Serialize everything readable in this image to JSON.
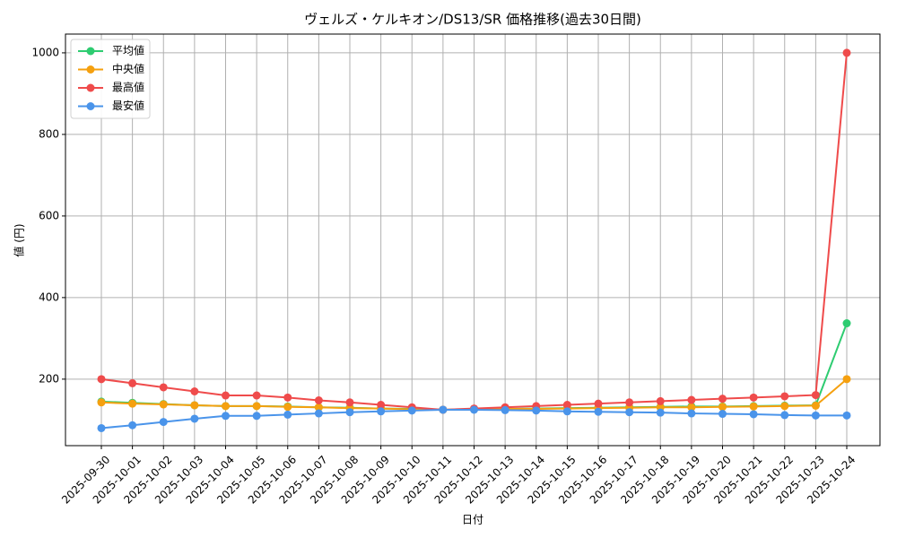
{
  "chart_data": {
    "type": "line",
    "title": "ヴェルズ・ケルキオン/DS13/SR 価格推移(過去30日間)",
    "x_label": "日付",
    "y_label": "値 (円)",
    "categories": [
      "2025-09-30",
      "2025-10-01",
      "2025-10-02",
      "2025-10-03",
      "2025-10-04",
      "2025-10-05",
      "2025-10-06",
      "2025-10-07",
      "2025-10-08",
      "2025-10-09",
      "2025-10-10",
      "2025-10-11",
      "2025-10-12",
      "2025-10-13",
      "2025-10-14",
      "2025-10-15",
      "2025-10-16",
      "2025-10-17",
      "2025-10-18",
      "2025-10-19",
      "2025-10-20",
      "2025-10-21",
      "2025-10-22",
      "2025-10-23",
      "2025-10-24"
    ],
    "series": [
      {
        "name": "平均値",
        "color": "#2ecc71",
        "values": [
          145,
          142,
          139,
          136,
          134,
          134,
          133,
          131,
          130,
          128,
          127,
          125,
          126,
          127,
          128,
          129,
          130,
          131,
          132,
          133,
          133,
          134,
          135,
          136,
          337
        ]
      },
      {
        "name": "中央値",
        "color": "#f5a00f",
        "values": [
          143,
          140,
          138,
          136,
          134,
          134,
          132,
          131,
          129,
          128,
          126,
          125,
          126,
          127,
          127,
          128,
          129,
          130,
          131,
          131,
          132,
          133,
          134,
          135,
          200
        ]
      },
      {
        "name": "最高値",
        "color": "#ef4b4b",
        "values": [
          200,
          190,
          180,
          170,
          160,
          160,
          155,
          148,
          143,
          137,
          131,
          125,
          128,
          131,
          134,
          137,
          140,
          143,
          146,
          149,
          152,
          155,
          158,
          161,
          1000
        ]
      },
      {
        "name": "最安値",
        "color": "#4a94ea",
        "values": [
          80,
          87,
          95,
          103,
          110,
          110,
          113,
          116,
          119,
          121,
          123,
          125,
          125,
          124,
          123,
          121,
          120,
          119,
          118,
          116,
          115,
          114,
          112,
          111,
          111
        ]
      }
    ],
    "ylim": [
      37,
      1046
    ],
    "yticks": [
      200,
      400,
      600,
      800,
      1000
    ],
    "grid": true,
    "legend": "upper left"
  }
}
